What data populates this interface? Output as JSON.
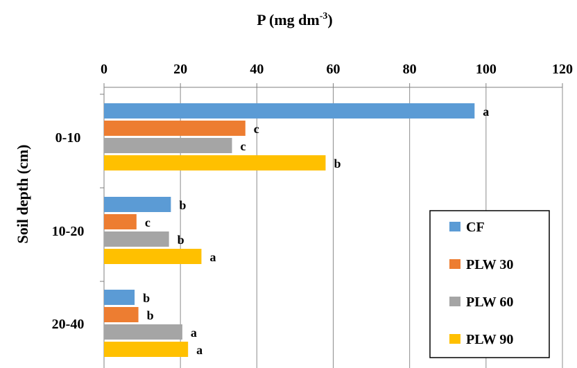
{
  "chart_data": {
    "type": "bar",
    "orientation": "horizontal",
    "title": "P (mg dm⁻³)",
    "title_parts": {
      "base": "P (mg dm",
      "sup": "-3",
      "tail": ")"
    },
    "ylabel": "Soil depth (cm)",
    "xlim": [
      0,
      120
    ],
    "x_ticks": [
      0,
      20,
      40,
      60,
      80,
      100,
      120
    ],
    "x_axis_position": "top",
    "grid": "vertical",
    "legend_position": "bottom-right",
    "categories": [
      "0-10",
      "10-20",
      "20-40"
    ],
    "series": [
      {
        "name": "CF",
        "color": "#5b9bd5",
        "values": [
          97,
          17.5,
          8
        ],
        "labels": [
          "a",
          "b",
          "b"
        ]
      },
      {
        "name": "PLW 30",
        "color": "#ed7d31",
        "values": [
          37,
          8.5,
          9
        ],
        "labels": [
          "c",
          "c",
          "b"
        ]
      },
      {
        "name": "PLW 60",
        "color": "#a5a5a5",
        "values": [
          33.5,
          17,
          20.5
        ],
        "labels": [
          "c",
          "b",
          "a"
        ]
      },
      {
        "name": "PLW 90",
        "color": "#ffc000",
        "values": [
          58,
          25.5,
          22
        ],
        "labels": [
          "b",
          "a",
          "a"
        ]
      }
    ]
  }
}
